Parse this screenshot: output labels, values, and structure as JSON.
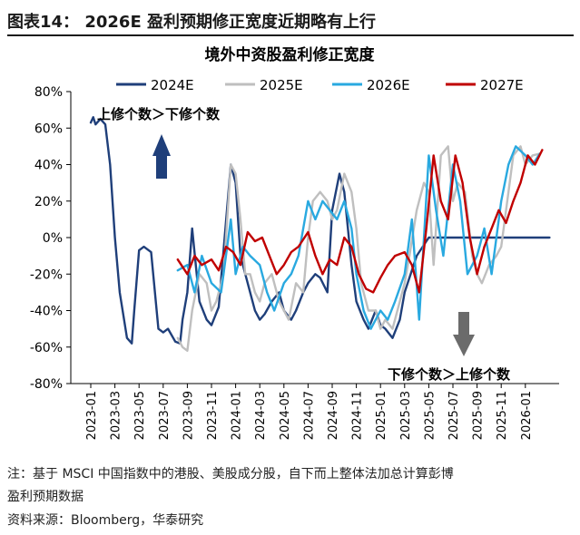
{
  "figure": {
    "label": "图表14：",
    "headline": "2026E 盈利预期修正宽度近期略有上行"
  },
  "footnote": {
    "line1": "注：基于 MSCI 中国指数中的港股、美股成分股，自下而上整体法加总计算彭博",
    "line2": "盈利预期数据",
    "source": "资料来源：Bloomberg，华泰研究"
  },
  "chart_data": {
    "type": "line",
    "title": "境外中资股盈利修正宽度",
    "xlabel": "",
    "ylabel": "",
    "ylim": [
      -80,
      80
    ],
    "y_ticks": [
      "80%",
      "60%",
      "40%",
      "20%",
      "0%",
      "-20%",
      "-40%",
      "-60%",
      "-80%"
    ],
    "x_ticks": [
      "2023-01",
      "2023-03",
      "2023-05",
      "2023-07",
      "2023-09",
      "2023-11",
      "2024-01",
      "2024-03",
      "2024-05",
      "2024-07",
      "2024-09",
      "2024-11",
      "2025-01",
      "2025-03",
      "2025-05",
      "2025-07",
      "2025-09",
      "2025-11",
      "2026-01"
    ],
    "legend_position": "top",
    "annotations": [
      {
        "text": "上修个数＞下修个数",
        "arrow": "up"
      },
      {
        "text": "下修个数＞上修个数",
        "arrow": "down"
      }
    ],
    "annotation_colors": {
      "up": "#1f3f7a",
      "down": "#6b6b6b"
    },
    "series": [
      {
        "name": "2024E",
        "color": "#1f3f7a",
        "x": [
          0.0,
          0.1,
          0.2,
          0.4,
          0.6,
          0.8,
          1.0,
          1.2,
          1.5,
          1.7,
          1.8,
          2.0,
          2.2,
          2.5,
          2.8,
          3.0,
          3.2,
          3.5,
          3.7,
          3.8,
          4.0,
          4.2,
          4.5,
          4.8,
          5.0,
          5.3,
          5.8,
          6.0,
          6.2,
          6.5,
          6.8,
          7.0,
          7.2,
          7.5,
          7.8,
          8.0,
          8.3,
          8.5,
          8.8,
          9.0,
          9.3,
          9.5,
          9.8,
          10.0,
          10.3,
          10.5,
          10.8,
          11.0,
          11.3,
          11.5,
          11.8,
          12.0,
          12.2,
          12.5,
          12.8,
          13.0,
          13.5,
          14.0,
          14.5,
          15.0,
          15.5,
          16.0,
          16.5,
          17.0,
          17.5,
          18.0,
          18.5,
          19.0
        ],
        "y": [
          63,
          66,
          62,
          65,
          62,
          40,
          0,
          -30,
          -55,
          -58,
          -40,
          -7,
          -5,
          -8,
          -50,
          -52,
          -50,
          -57,
          -58,
          -45,
          -30,
          5,
          -35,
          -45,
          -48,
          -38,
          40,
          30,
          -10,
          -25,
          -40,
          -45,
          -42,
          -35,
          -30,
          -40,
          -45,
          -40,
          -30,
          -25,
          -20,
          -22,
          -30,
          15,
          35,
          25,
          -15,
          -35,
          -45,
          -50,
          -40,
          -48,
          -50,
          -55,
          -45,
          -30,
          -10,
          0,
          0,
          0,
          0,
          0,
          0,
          0,
          0,
          0,
          0,
          0
        ]
      },
      {
        "name": "2025E",
        "color": "#bfbfbf",
        "x": [
          3.6,
          3.8,
          4.0,
          4.2,
          4.5,
          4.8,
          5.0,
          5.2,
          5.5,
          5.8,
          6.0,
          6.2,
          6.4,
          6.6,
          6.8,
          7.0,
          7.2,
          7.5,
          7.8,
          8.0,
          8.2,
          8.5,
          8.8,
          9.0,
          9.2,
          9.5,
          9.8,
          10.0,
          10.2,
          10.5,
          10.8,
          11.0,
          11.2,
          11.5,
          11.8,
          12.0,
          12.2,
          12.5,
          12.8,
          13.0,
          13.2,
          13.5,
          13.8,
          14.0,
          14.2,
          14.5,
          14.8,
          15.0,
          15.2,
          15.5,
          15.8,
          16.0,
          16.2,
          16.5,
          16.8,
          17.0,
          17.3,
          17.5,
          17.8,
          18.0,
          18.3,
          18.6
        ],
        "y": [
          -55,
          -60,
          -62,
          -40,
          -20,
          -25,
          -40,
          -35,
          -20,
          40,
          35,
          10,
          -20,
          -20,
          -30,
          -35,
          -25,
          -20,
          -35,
          -40,
          -45,
          -25,
          -30,
          0,
          20,
          25,
          20,
          10,
          15,
          35,
          25,
          5,
          -25,
          -40,
          -40,
          -50,
          -45,
          -50,
          -35,
          -25,
          -10,
          15,
          30,
          25,
          -15,
          45,
          50,
          20,
          30,
          25,
          -10,
          -20,
          -25,
          -15,
          -10,
          -5,
          25,
          45,
          50,
          40,
          45,
          46
        ]
      },
      {
        "name": "2026E",
        "color": "#29a9e0",
        "x": [
          3.6,
          4.0,
          4.3,
          4.6,
          5.0,
          5.4,
          5.8,
          6.0,
          6.3,
          6.6,
          7.0,
          7.3,
          7.6,
          8.0,
          8.3,
          8.6,
          9.0,
          9.3,
          9.6,
          9.9,
          10.2,
          10.5,
          10.8,
          11.0,
          11.3,
          11.6,
          12.0,
          12.3,
          12.6,
          13.0,
          13.3,
          13.6,
          14.0,
          14.3,
          14.6,
          15.0,
          15.3,
          15.6,
          16.0,
          16.3,
          16.6,
          17.0,
          17.3,
          17.6,
          18.0,
          18.3,
          18.6
        ],
        "y": [
          -18,
          -15,
          -30,
          -10,
          -25,
          -30,
          10,
          -20,
          -5,
          -10,
          -15,
          -30,
          -40,
          -25,
          -20,
          -10,
          20,
          10,
          20,
          15,
          10,
          20,
          5,
          -20,
          -40,
          -50,
          -40,
          -45,
          -35,
          -20,
          10,
          -45,
          45,
          15,
          -10,
          40,
          20,
          -20,
          -10,
          5,
          -20,
          20,
          40,
          50,
          45,
          40,
          46
        ]
      },
      {
        "name": "2027E",
        "color": "#c00000",
        "x": [
          3.6,
          4.0,
          4.3,
          4.6,
          5.0,
          5.3,
          5.6,
          5.9,
          6.2,
          6.5,
          6.8,
          7.1,
          7.4,
          7.7,
          8.0,
          8.3,
          8.6,
          9.0,
          9.3,
          9.6,
          9.9,
          10.2,
          10.5,
          10.8,
          11.1,
          11.4,
          11.7,
          12.0,
          12.3,
          12.6,
          13.0,
          13.3,
          13.6,
          13.9,
          14.2,
          14.5,
          14.8,
          15.1,
          15.4,
          15.7,
          16.0,
          16.3,
          16.6,
          16.9,
          17.2,
          17.5,
          17.8,
          18.1,
          18.4,
          18.7
        ],
        "y": [
          -12,
          -20,
          -10,
          -15,
          -12,
          -18,
          -5,
          -8,
          -15,
          3,
          -2,
          0,
          -10,
          -20,
          -15,
          -8,
          -5,
          3,
          -10,
          -20,
          -12,
          -15,
          0,
          -5,
          -20,
          -28,
          -30,
          -22,
          -15,
          -10,
          -8,
          -15,
          -30,
          5,
          45,
          20,
          10,
          45,
          30,
          0,
          -20,
          -5,
          5,
          15,
          8,
          20,
          30,
          45,
          40,
          48
        ]
      }
    ]
  }
}
